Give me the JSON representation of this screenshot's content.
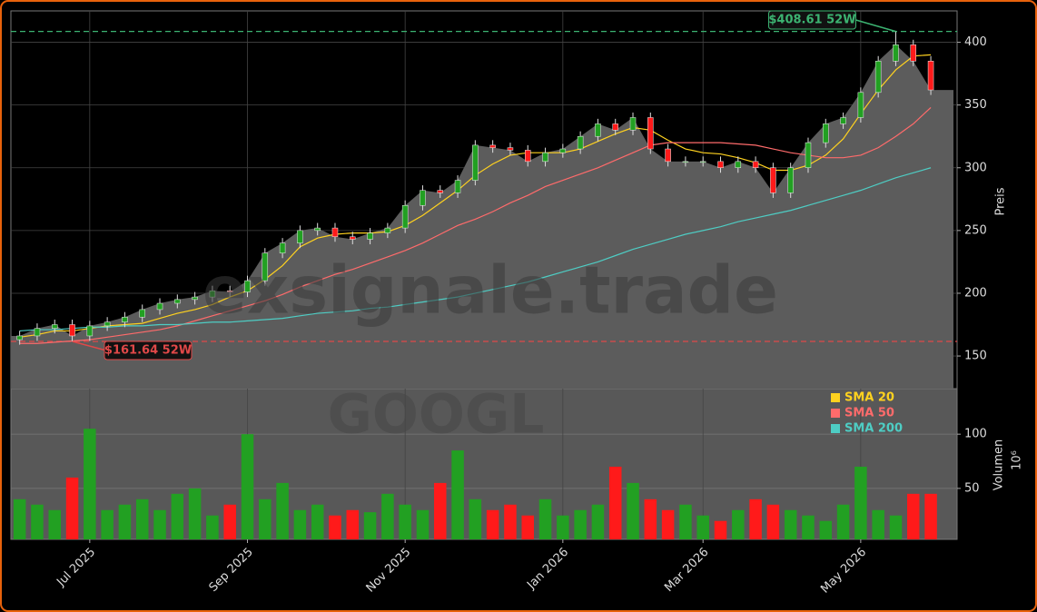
{
  "chart_data": {
    "type": "candlestick",
    "watermark": "exsignale.trade",
    "symbol": "GOOGL",
    "ylabel": "Preis",
    "categories": [
      null,
      null,
      null,
      null,
      "Jul 2025",
      null,
      null,
      null,
      null,
      null,
      null,
      null,
      null,
      "Sep 2025",
      null,
      null,
      null,
      null,
      null,
      null,
      null,
      null,
      "Nov 2025",
      null,
      null,
      null,
      null,
      null,
      null,
      null,
      null,
      "Jan 2026",
      null,
      null,
      null,
      null,
      null,
      null,
      null,
      "Mar 2026",
      null,
      null,
      null,
      null,
      null,
      null,
      null,
      null,
      "May 2026",
      null,
      null,
      null,
      null
    ],
    "open": [
      163,
      166,
      172,
      175,
      166,
      174,
      177,
      181,
      187,
      192,
      195,
      197,
      202,
      201,
      210,
      232,
      240,
      250,
      252,
      245,
      243,
      248,
      252,
      270,
      282,
      280,
      290,
      318,
      316,
      314,
      305,
      312,
      315,
      325,
      335,
      330,
      340,
      315,
      305,
      305,
      305,
      300,
      305,
      300,
      280,
      300,
      320,
      335,
      340,
      360,
      385,
      398,
      385
    ],
    "high": [
      170,
      176,
      179,
      179,
      178,
      181,
      185,
      191,
      196,
      199,
      201,
      206,
      206,
      214,
      236,
      244,
      254,
      256,
      256,
      249,
      252,
      256,
      274,
      286,
      286,
      294,
      322,
      322,
      320,
      318,
      316,
      319,
      329,
      339,
      339,
      344,
      344,
      319,
      309,
      309,
      309,
      309,
      309,
      304,
      304,
      324,
      339,
      344,
      364,
      389,
      408.61,
      402,
      389
    ],
    "low": [
      159,
      162,
      168,
      161.64,
      162,
      170,
      173,
      177,
      183,
      188,
      191,
      193,
      197,
      197,
      206,
      228,
      236,
      246,
      241,
      239,
      239,
      244,
      248,
      266,
      276,
      276,
      286,
      312,
      310,
      301,
      301,
      308,
      311,
      321,
      326,
      326,
      311,
      301,
      301,
      301,
      296,
      296,
      296,
      276,
      276,
      296,
      316,
      331,
      336,
      356,
      381,
      381,
      358
    ],
    "close": [
      166,
      172,
      175,
      166,
      174,
      177,
      181,
      187,
      192,
      195,
      197,
      202,
      201,
      210,
      232,
      240,
      250,
      252,
      245,
      243,
      248,
      252,
      270,
      282,
      280,
      290,
      318,
      316,
      314,
      305,
      312,
      315,
      325,
      335,
      330,
      340,
      315,
      305,
      305,
      305,
      300,
      305,
      300,
      280,
      300,
      320,
      335,
      340,
      360,
      385,
      398,
      385,
      362
    ],
    "up_color": "#22a022",
    "down_color": "#ff1a1a",
    "area_color": "#5c5c5c",
    "series": [
      {
        "name": "SMA 20",
        "color": "#ffd21f",
        "values": [
          165,
          167,
          170,
          170,
          172,
          174,
          175,
          176,
          180,
          184,
          187,
          191,
          197,
          202,
          211,
          222,
          237,
          244,
          247,
          248,
          248,
          249,
          254,
          262,
          272,
          282,
          294,
          303,
          310,
          312,
          312,
          312,
          315,
          321,
          327,
          332,
          330,
          322,
          315,
          312,
          311,
          308,
          304,
          298,
          298,
          302,
          310,
          323,
          343,
          362,
          378,
          389,
          390
        ]
      },
      {
        "name": "SMA 50",
        "color": "#ff6b6b",
        "values": [
          160,
          160,
          161,
          162,
          163,
          165,
          167,
          169,
          171,
          174,
          178,
          182,
          186,
          190,
          194,
          199,
          205,
          210,
          215,
          219,
          224,
          229,
          234,
          240,
          247,
          254,
          259,
          265,
          272,
          278,
          285,
          290,
          295,
          300,
          306,
          312,
          318,
          320,
          320,
          320,
          320,
          319,
          318,
          315,
          312,
          310,
          308,
          308,
          310,
          316,
          325,
          335,
          348
        ]
      },
      {
        "name": "SMA 200",
        "color": "#4ecdc4",
        "values": [
          170,
          171,
          171,
          172,
          173,
          173,
          174,
          174,
          175,
          175,
          176,
          177,
          177,
          178,
          179,
          180,
          182,
          184,
          185,
          186,
          188,
          189,
          191,
          193,
          195,
          197,
          200,
          203,
          206,
          209,
          213,
          217,
          221,
          225,
          230,
          235,
          239,
          243,
          247,
          250,
          253,
          257,
          260,
          263,
          266,
          270,
          274,
          278,
          282,
          287,
          292,
          296,
          300
        ]
      }
    ],
    "high_52w": {
      "value": 408.61,
      "label": "$408.61 52W",
      "color": "#3cb371"
    },
    "low_52w": {
      "value": 161.64,
      "label": "$161.64 52W",
      "color": "#e04848"
    },
    "ylim": [
      124,
      425
    ],
    "yticks": [
      150,
      200,
      250,
      300,
      350,
      400
    ],
    "grid": true,
    "volume": {
      "label": "Volumen",
      "scale_label": "10⁶",
      "values": [
        40,
        35,
        30,
        60,
        105,
        30,
        35,
        40,
        30,
        45,
        50,
        25,
        35,
        100,
        40,
        55,
        30,
        35,
        25,
        30,
        28,
        45,
        35,
        30,
        55,
        85,
        40,
        30,
        35,
        25,
        40,
        25,
        30,
        35,
        70,
        55,
        40,
        30,
        35,
        25,
        20,
        30,
        40,
        35,
        30,
        25,
        20,
        35,
        70,
        30,
        25,
        45,
        45
      ],
      "ylim": [
        3,
        142
      ],
      "yticks": [
        50,
        100
      ]
    }
  }
}
